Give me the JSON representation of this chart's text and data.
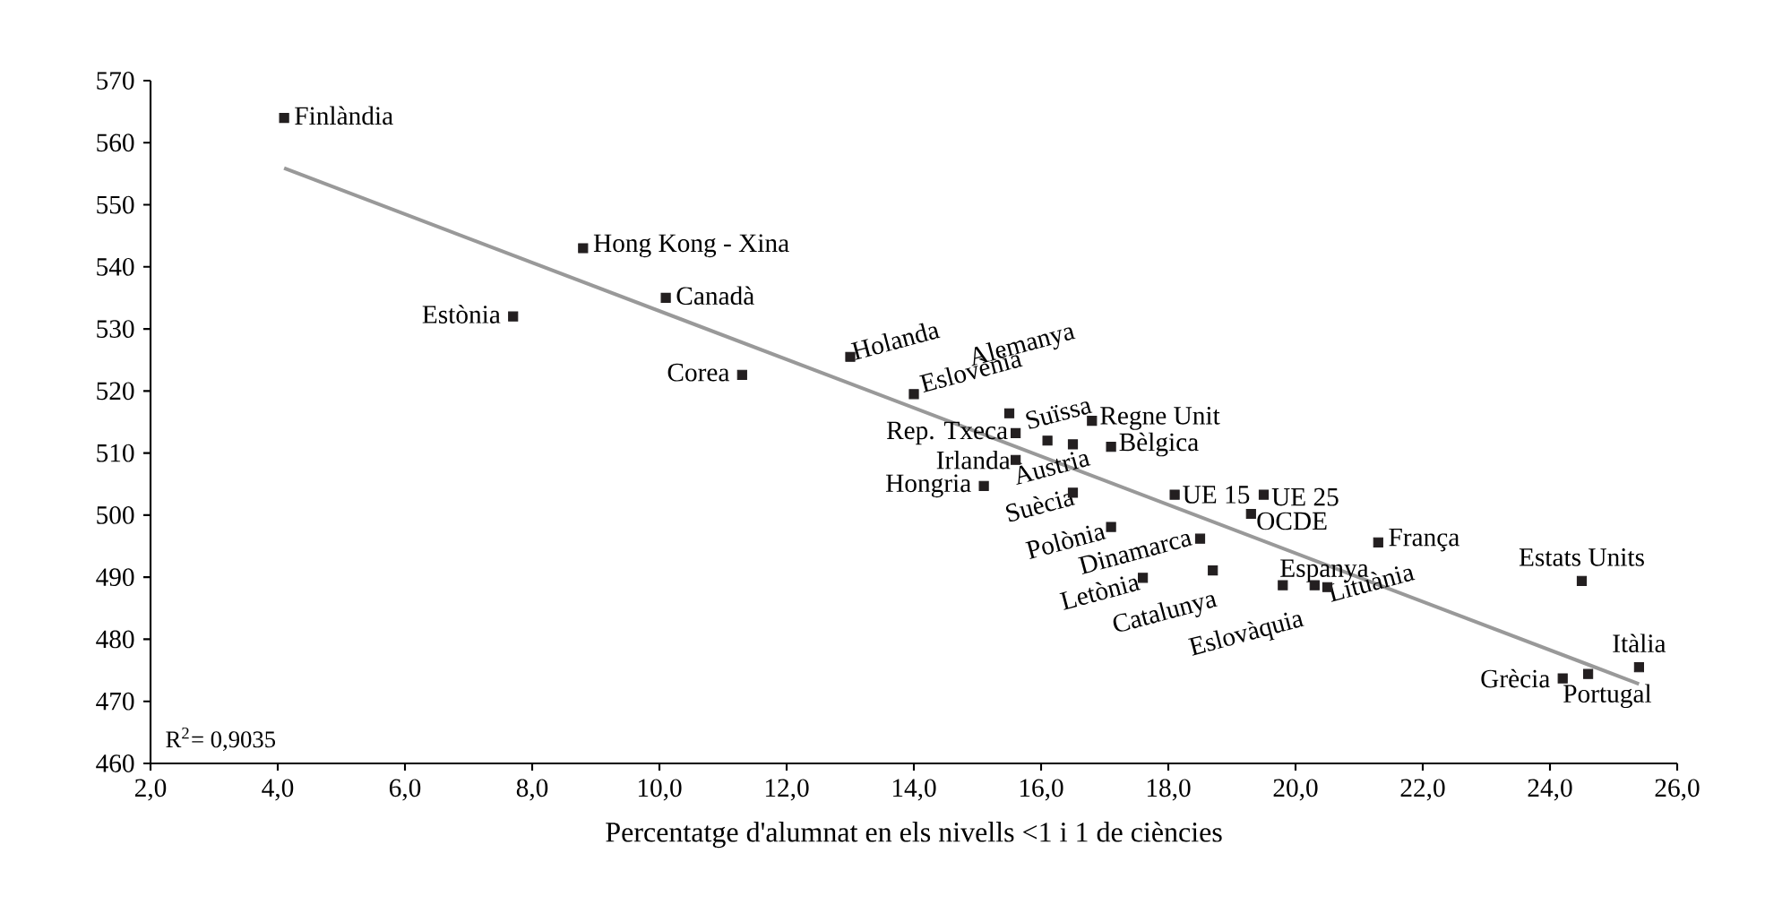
{
  "chart_data": {
    "type": "scatter",
    "xlabel": "Percentatge d'alumnat en els nivells <1 i 1 de ciències",
    "grid": false,
    "xlim": [
      2,
      26
    ],
    "ylim": [
      460,
      570
    ],
    "xticks": [
      {
        "value": 2,
        "label": "2,0"
      },
      {
        "value": 4,
        "label": "4,0"
      },
      {
        "value": 6,
        "label": "6,0"
      },
      {
        "value": 8,
        "label": "8,0"
      },
      {
        "value": 10,
        "label": "10,0"
      },
      {
        "value": 12,
        "label": "12,0"
      },
      {
        "value": 14,
        "label": "14,0"
      },
      {
        "value": 16,
        "label": "16,0"
      },
      {
        "value": 18,
        "label": "18,0"
      },
      {
        "value": 20,
        "label": "20,0"
      },
      {
        "value": 22,
        "label": "22,0"
      },
      {
        "value": 24,
        "label": "24,0"
      },
      {
        "value": 26,
        "label": "26,0"
      }
    ],
    "yticks": [
      460,
      470,
      480,
      490,
      500,
      510,
      520,
      530,
      540,
      550,
      560,
      570
    ],
    "series": [
      {
        "marker": "square",
        "color": "#231f20",
        "x": [
          4.1,
          8.8,
          10.1,
          7.7,
          11.3,
          13.0,
          14.0,
          15.5,
          15.6,
          16.1,
          16.5,
          16.8,
          17.1,
          15.6,
          15.1,
          16.5,
          17.1,
          18.1,
          19.5,
          19.3,
          18.5,
          18.7,
          17.6,
          19.8,
          20.3,
          20.5,
          21.3,
          24.5,
          25.4,
          24.2,
          24.6
        ],
        "values": [
          564,
          543,
          535,
          532,
          522.6,
          525.5,
          519.5,
          516.4,
          513.2,
          512,
          511.4,
          515.2,
          511,
          508.9,
          504.7,
          503.6,
          498.1,
          503.3,
          503.3,
          500.2,
          496.2,
          491.1,
          489.9,
          488.7,
          488.7,
          488.4,
          495.6,
          489.4,
          475.5,
          473.7,
          474.4
        ]
      },
      {
        "type": "line",
        "marker": "none",
        "color": "#999999",
        "x": [
          4.1,
          25.4
        ],
        "values": [
          555.9,
          472.8
        ]
      }
    ],
    "annotations": [
      {
        "text": "Finlàndia",
        "x": 4.1,
        "y": 564
      },
      {
        "text": "Hong Kong - Xina",
        "x": 8.8,
        "y": 543
      },
      {
        "text": "Canadà",
        "x": 10.1,
        "y": 535
      },
      {
        "text": "Estònia",
        "x": 7.7,
        "y": 532
      },
      {
        "text": "Corea",
        "x": 11.3,
        "y": 522.6
      },
      {
        "text": "Holanda",
        "x": 13.0,
        "y": 525.5
      },
      {
        "text": "Eslovènia",
        "x": 14.0,
        "y": 519.5
      },
      {
        "text": "Alemanya",
        "x": 15.5,
        "y": 516.4
      },
      {
        "text": "Rep. Txeca",
        "x": 15.6,
        "y": 513.2
      },
      {
        "text": "Suïssa",
        "x": 16.1,
        "y": 512
      },
      {
        "text": "Àustria",
        "x": 16.5,
        "y": 511.4
      },
      {
        "text": "Regne Unit",
        "x": 16.8,
        "y": 515.2
      },
      {
        "text": "Bèlgica",
        "x": 17.1,
        "y": 511
      },
      {
        "text": "Irlanda",
        "x": 15.6,
        "y": 508.9
      },
      {
        "text": "Hongria",
        "x": 15.1,
        "y": 504.7
      },
      {
        "text": "Suècia",
        "x": 16.5,
        "y": 503.6
      },
      {
        "text": "Polònia",
        "x": 17.1,
        "y": 498.1
      },
      {
        "text": "UE 15",
        "x": 18.1,
        "y": 503.3
      },
      {
        "text": "UE 25",
        "x": 19.5,
        "y": 503.3
      },
      {
        "text": "OCDE",
        "x": 19.3,
        "y": 500.2
      },
      {
        "text": "Dinamarca",
        "x": 18.5,
        "y": 496.2
      },
      {
        "text": "Catalunya",
        "x": 18.7,
        "y": 491.1
      },
      {
        "text": "Letònia",
        "x": 17.6,
        "y": 489.9
      },
      {
        "text": "Eslovàquia",
        "x": 19.8,
        "y": 488.7
      },
      {
        "text": "Espanya",
        "x": 20.3,
        "y": 488.7
      },
      {
        "text": "Lituània",
        "x": 20.5,
        "y": 488.4
      },
      {
        "text": "França",
        "x": 21.3,
        "y": 495.6
      },
      {
        "text": "Estats Units",
        "x": 24.5,
        "y": 489.4
      },
      {
        "text": "Itàlia",
        "x": 25.4,
        "y": 475.5
      },
      {
        "text": "Grècia",
        "x": 24.2,
        "y": 473.7
      },
      {
        "text": "Portugal",
        "x": 24.6,
        "y": 474.4
      },
      "R$^{2}$= 0,9035"
    ]
  }
}
